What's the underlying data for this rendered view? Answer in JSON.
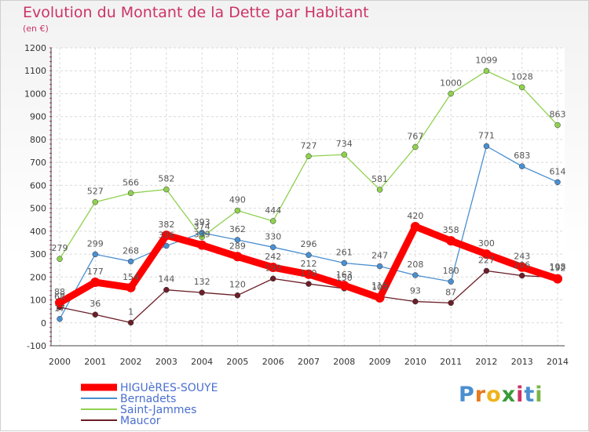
{
  "chart_data": {
    "type": "line",
    "title": "Evolution du Montant de la Dette par Habitant",
    "ylabel": "(en €)",
    "xlabel": "",
    "x": [
      "2000",
      "2001",
      "2002",
      "2003",
      "2004",
      "2005",
      "2006",
      "2007",
      "2008",
      "2009",
      "2010",
      "2011",
      "2012",
      "2013",
      "2014"
    ],
    "ylim": [
      -100,
      1200
    ],
    "yticks": [
      "-100",
      "0",
      "100",
      "200",
      "300",
      "400",
      "500",
      "600",
      "700",
      "800",
      "900",
      "1000",
      "1100",
      "1200"
    ],
    "grid": true,
    "legend_position": "bottom-left",
    "series": [
      {
        "name": "HIGUèRES-SOUYE",
        "color": "#ff0000",
        "values": [
          88,
          177,
          154,
          382,
          339,
          289,
          242,
          212,
          163,
          109,
          420,
          358,
          300,
          243,
          192
        ],
        "labels": [
          "88",
          "177",
          "154",
          "382",
          "339",
          "289",
          "242",
          "212",
          "163",
          "109",
          "420",
          "358",
          "300",
          "243",
          "192"
        ]
      },
      {
        "name": "Bernadets",
        "color": "#4a8fd0",
        "values": [
          17,
          299,
          268,
          336,
          393,
          362,
          330,
          296,
          261,
          247,
          208,
          180,
          771,
          683,
          614
        ],
        "labels": [
          "17",
          "299",
          "268",
          "336",
          "393",
          "362",
          "330",
          "296",
          "261",
          "247",
          "208",
          "180",
          "771",
          "683",
          "614"
        ]
      },
      {
        "name": "Saint-Jammes",
        "color": "#8fd14f",
        "values": [
          279,
          527,
          566,
          582,
          374,
          490,
          444,
          727,
          734,
          581,
          767,
          1000,
          1099,
          1028,
          863
        ],
        "labels": [
          "279",
          "527",
          "566",
          "582",
          "374",
          "490",
          "444",
          "727",
          "734",
          "581",
          "767",
          "1000",
          "1099",
          "1028",
          "863"
        ]
      },
      {
        "name": "Maucor",
        "color": "#6b1f28",
        "values": [
          68,
          36,
          1,
          144,
          132,
          120,
          193,
          170,
          150,
          115,
          93,
          87,
          227,
          206,
          198
        ],
        "labels": [
          "68",
          "36",
          "1",
          "144",
          "132",
          "120",
          "193",
          "170",
          "150",
          "115",
          "93",
          "87",
          "227",
          "206",
          "198"
        ]
      }
    ]
  },
  "logo": {
    "p": "P",
    "r": "r",
    "o": "o",
    "x": "x",
    "i1": "i",
    "t": "t",
    "i2": "i"
  }
}
